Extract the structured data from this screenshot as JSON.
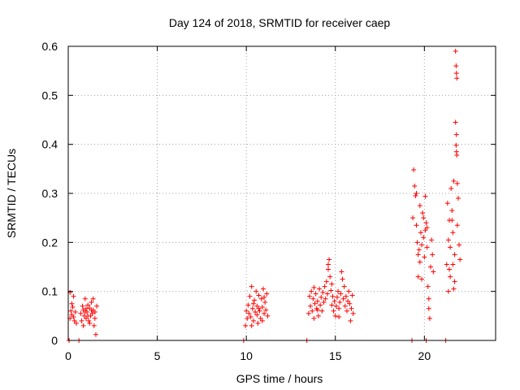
{
  "chart_data": {
    "type": "scatter",
    "title": "Day 124 of 2018, SRMTID for receiver caep",
    "xlabel": "GPS time / hours",
    "ylabel": "SRMTID / TECUs",
    "xlim": [
      0,
      24
    ],
    "ylim": [
      0,
      0.6
    ],
    "xticks": [
      0,
      5,
      10,
      15,
      20
    ],
    "xtick_labels": [
      "0",
      "5",
      "10",
      "15",
      "20"
    ],
    "yticks": [
      0,
      0.1,
      0.2,
      0.3,
      0.4,
      0.5,
      0.6
    ],
    "ytick_labels": [
      "0",
      "0.1",
      "0.2",
      "0.3",
      "0.4",
      "0.5",
      "0.6"
    ],
    "grid": true,
    "marker": "+",
    "color": "#ff0000",
    "series": [
      {
        "name": "SRMTID",
        "points": [
          [
            0.05,
            0.0
          ],
          [
            0.1,
            0.045
          ],
          [
            0.15,
            0.06
          ],
          [
            0.2,
            0.052
          ],
          [
            0.25,
            0.068
          ],
          [
            0.3,
            0.09
          ],
          [
            0.35,
            0.04
          ],
          [
            0.4,
            0.058
          ],
          [
            0.45,
            0.035
          ],
          [
            0.1,
            0.098
          ],
          [
            0.2,
            0.075
          ],
          [
            0.3,
            0.048
          ],
          [
            0.6,
            0.0
          ],
          [
            0.7,
            0.055
          ],
          [
            0.75,
            0.04
          ],
          [
            0.8,
            0.07
          ],
          [
            0.85,
            0.062
          ],
          [
            0.9,
            0.05
          ],
          [
            0.95,
            0.085
          ],
          [
            1.0,
            0.045
          ],
          [
            1.05,
            0.058
          ],
          [
            1.1,
            0.072
          ],
          [
            1.15,
            0.04
          ],
          [
            1.2,
            0.066
          ],
          [
            1.25,
            0.05
          ],
          [
            1.3,
            0.078
          ],
          [
            1.35,
            0.055
          ],
          [
            1.4,
            0.062
          ],
          [
            1.45,
            0.03
          ],
          [
            1.5,
            0.058
          ],
          [
            1.55,
            0.012
          ],
          [
            1.6,
            0.07
          ],
          [
            0.85,
            0.03
          ],
          [
            1.0,
            0.065
          ],
          [
            1.2,
            0.035
          ],
          [
            1.4,
            0.085
          ],
          [
            1.5,
            0.045
          ],
          [
            0.95,
            0.058
          ],
          [
            1.1,
            0.05
          ],
          [
            1.3,
            0.062
          ],
          [
            9.85,
            0.0
          ],
          [
            9.95,
            0.03
          ],
          [
            10.0,
            0.06
          ],
          [
            10.05,
            0.045
          ],
          [
            10.1,
            0.072
          ],
          [
            10.15,
            0.055
          ],
          [
            10.2,
            0.09
          ],
          [
            10.25,
            0.048
          ],
          [
            10.3,
            0.11
          ],
          [
            10.35,
            0.065
          ],
          [
            10.4,
            0.04
          ],
          [
            10.45,
            0.082
          ],
          [
            10.5,
            0.058
          ],
          [
            10.55,
            0.1
          ],
          [
            10.6,
            0.07
          ],
          [
            10.65,
            0.035
          ],
          [
            10.7,
            0.092
          ],
          [
            10.75,
            0.06
          ],
          [
            10.8,
            0.045
          ],
          [
            10.85,
            0.085
          ],
          [
            10.9,
            0.068
          ],
          [
            10.95,
            0.105
          ],
          [
            11.0,
            0.055
          ],
          [
            11.05,
            0.078
          ],
          [
            11.1,
            0.062
          ],
          [
            11.15,
            0.095
          ],
          [
            11.2,
            0.05
          ],
          [
            10.3,
            0.03
          ],
          [
            10.6,
            0.052
          ],
          [
            10.9,
            0.04
          ],
          [
            10.4,
            0.075
          ],
          [
            10.7,
            0.065
          ],
          [
            11.0,
            0.088
          ],
          [
            13.4,
            0.0
          ],
          [
            13.5,
            0.055
          ],
          [
            13.55,
            0.09
          ],
          [
            13.6,
            0.07
          ],
          [
            13.65,
            0.1
          ],
          [
            13.7,
            0.06
          ],
          [
            13.75,
            0.085
          ],
          [
            13.8,
            0.045
          ],
          [
            13.85,
            0.075
          ],
          [
            13.9,
            0.095
          ],
          [
            13.95,
            0.065
          ],
          [
            14.0,
            0.08
          ],
          [
            14.05,
            0.05
          ],
          [
            14.1,
            0.105
          ],
          [
            14.15,
            0.072
          ],
          [
            14.2,
            0.088
          ],
          [
            14.25,
            0.06
          ],
          [
            14.3,
            0.098
          ],
          [
            14.35,
            0.078
          ],
          [
            14.4,
            0.11
          ],
          [
            14.45,
            0.085
          ],
          [
            14.5,
            0.12
          ],
          [
            14.55,
            0.095
          ],
          [
            14.6,
            0.155
          ],
          [
            14.65,
            0.165
          ],
          [
            14.7,
            0.13
          ],
          [
            14.75,
            0.102
          ],
          [
            14.8,
            0.072
          ],
          [
            14.85,
            0.09
          ],
          [
            14.9,
            0.06
          ],
          [
            14.95,
            0.08
          ],
          [
            15.0,
            0.05
          ],
          [
            15.05,
            0.07
          ],
          [
            15.1,
            0.088
          ],
          [
            15.15,
            0.1
          ],
          [
            15.2,
            0.065
          ],
          [
            15.25,
            0.078
          ],
          [
            15.3,
            0.095
          ],
          [
            15.35,
            0.14
          ],
          [
            15.4,
            0.125
          ],
          [
            15.45,
            0.085
          ],
          [
            15.5,
            0.11
          ],
          [
            15.55,
            0.07
          ],
          [
            15.6,
            0.09
          ],
          [
            15.65,
            0.06
          ],
          [
            15.7,
            0.08
          ],
          [
            15.75,
            0.1
          ],
          [
            15.8,
            0.075
          ],
          [
            15.85,
            0.04
          ],
          [
            15.9,
            0.065
          ],
          [
            15.95,
            0.092
          ],
          [
            16.0,
            0.055
          ],
          [
            14.6,
            0.145
          ],
          [
            14.8,
            0.115
          ],
          [
            14.0,
            0.062
          ],
          [
            13.8,
            0.108
          ],
          [
            15.2,
            0.048
          ],
          [
            19.3,
            0.0
          ],
          [
            19.35,
            0.25
          ],
          [
            19.4,
            0.348
          ],
          [
            19.45,
            0.315
          ],
          [
            19.5,
            0.295
          ],
          [
            19.55,
            0.235
          ],
          [
            19.6,
            0.2
          ],
          [
            19.65,
            0.13
          ],
          [
            19.7,
            0.185
          ],
          [
            19.75,
            0.16
          ],
          [
            19.8,
            0.22
          ],
          [
            19.85,
            0.125
          ],
          [
            19.9,
            0.26
          ],
          [
            19.95,
            0.21
          ],
          [
            20.0,
            0.17
          ],
          [
            20.05,
            0.294
          ],
          [
            20.1,
            0.24
          ],
          [
            20.15,
            0.19
          ],
          [
            20.2,
            0.11
          ],
          [
            20.25,
            0.065
          ],
          [
            20.3,
            0.045
          ],
          [
            20.35,
            0.15
          ],
          [
            20.4,
            0.205
          ],
          [
            20.45,
            0.175
          ],
          [
            20.5,
            0.14
          ],
          [
            19.55,
            0.3
          ],
          [
            19.75,
            0.275
          ],
          [
            19.95,
            0.25
          ],
          [
            20.15,
            0.23
          ],
          [
            19.65,
            0.175
          ],
          [
            19.85,
            0.195
          ],
          [
            20.05,
            0.225
          ],
          [
            20.25,
            0.085
          ],
          [
            20.1,
            0.0
          ],
          [
            21.2,
            0.0
          ],
          [
            21.25,
            0.155
          ],
          [
            21.3,
            0.28
          ],
          [
            21.35,
            0.205
          ],
          [
            21.4,
            0.245
          ],
          [
            21.45,
            0.13
          ],
          [
            21.5,
            0.31
          ],
          [
            21.55,
            0.265
          ],
          [
            21.6,
            0.22
          ],
          [
            21.65,
            0.325
          ],
          [
            21.7,
            0.175
          ],
          [
            21.75,
            0.59
          ],
          [
            21.78,
            0.56
          ],
          [
            21.8,
            0.545
          ],
          [
            21.82,
            0.535
          ],
          [
            21.75,
            0.445
          ],
          [
            21.8,
            0.42
          ],
          [
            21.78,
            0.398
          ],
          [
            21.8,
            0.385
          ],
          [
            21.82,
            0.378
          ],
          [
            21.85,
            0.32
          ],
          [
            21.9,
            0.29
          ],
          [
            21.95,
            0.195
          ],
          [
            22.0,
            0.165
          ],
          [
            21.65,
            0.105
          ],
          [
            21.7,
            0.12
          ],
          [
            21.35,
            0.1
          ],
          [
            21.55,
            0.245
          ],
          [
            21.45,
            0.19
          ],
          [
            21.85,
            0.235
          ],
          [
            21.6,
            0.155
          ],
          [
            21.4,
            0.145
          ]
        ]
      }
    ]
  }
}
